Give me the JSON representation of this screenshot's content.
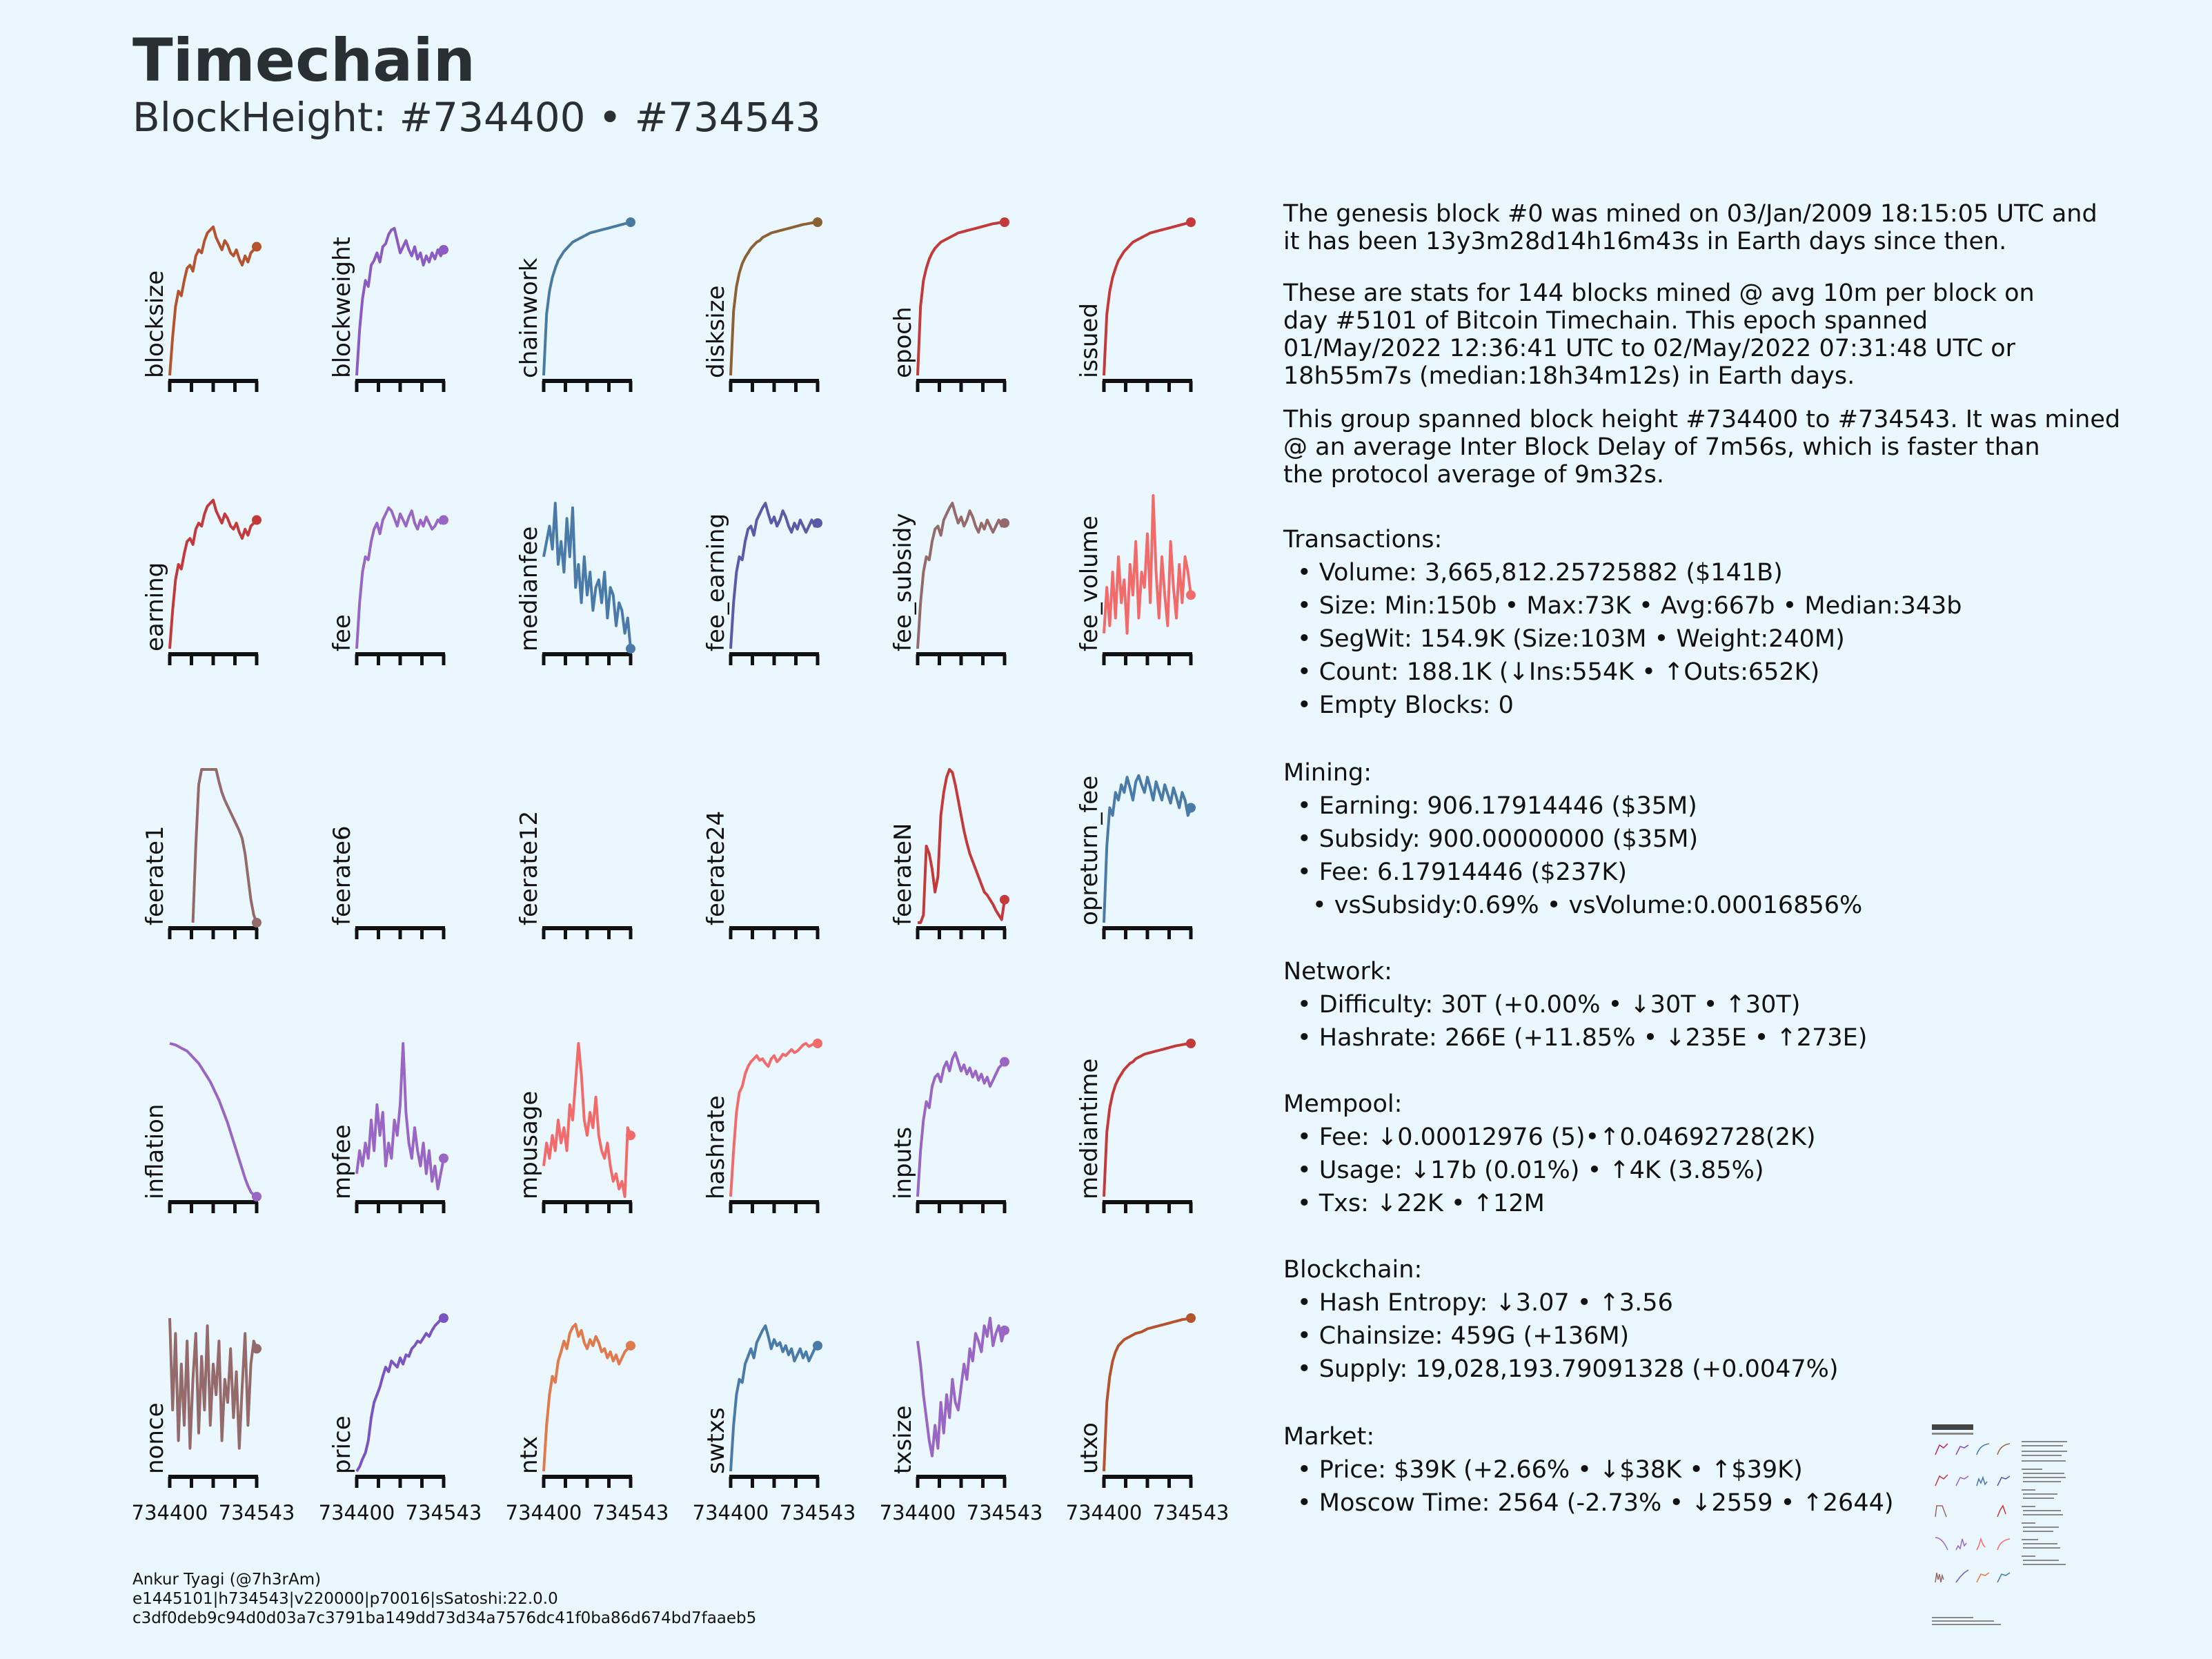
{
  "header": {
    "title": "Timechain",
    "subtitle": "BlockHeight: #734400 • #734543"
  },
  "intro": [
    "The genesis block #0 was mined on 03/Jan/2009 18:15:05 UTC and\nit has been 13y3m28d14h16m43s in Earth days since then.",
    "These are stats for 144 blocks mined @ avg 10m per block on\nday #5101 of Bitcoin Timechain. This epoch spanned\n01/May/2022 12:36:41 UTC to 02/May/2022 07:31:48 UTC or\n18h55m7s (median:18h34m12s) in Earth days.",
    "This group spanned block height #734400 to #734543. It was mined\n@ an average Inter Block Delay of 7m56s, which is faster than\nthe protocol average of 9m32s."
  ],
  "sections": [
    {
      "title": "Transactions:",
      "items": [
        "• Volume: 3,665,812.25725882 ($141B)",
        "• Size: Min:150b • Max:73K • Avg:667b • Median:343b",
        "• SegWit: 154.9K (Size:103M • Weight:240M)",
        "• Count: 188.1K (↓Ins:554K • ↑Outs:652K)",
        "• Empty Blocks: 0"
      ]
    },
    {
      "title": "Mining:",
      "items": [
        "• Earning: 906.17914446 ($35M)",
        "• Subsidy: 900.00000000 ($35M)",
        "• Fee: 6.17914446 ($237K)",
        "• vsSubsidy:0.69% • vsVolume:0.00016856%"
      ]
    },
    {
      "title": "Network:",
      "items": [
        "• Difficulty: 30T (+0.00% • ↓30T • ↑30T)",
        "• Hashrate: 266E (+11.85% • ↓235E • ↑273E)"
      ]
    },
    {
      "title": "Mempool:",
      "items": [
        "• Fee: ↓0.00012976 (5)•↑0.04692728(2K)",
        "• Usage: ↓17b (0.01%) • ↑4K (3.85%)",
        "• Txs: ↓22K • ↑12M"
      ]
    },
    {
      "title": "Blockchain:",
      "items": [
        "• Hash Entropy: ↓3.07 • ↑3.56",
        "• Chainsize: 459G (+136M)",
        "• Supply: 19,028,193.79091328 (+0.0047%)"
      ]
    },
    {
      "title": "Market:",
      "items": [
        "• Price: $39K (+2.66% • ↓$38K • ↑$39K)",
        "• Moscow Time: 2564 (-2.73% • ↓2559 • ↑2644)"
      ]
    }
  ],
  "footer": [
    "Ankur Tyagi (@7h3rAm)",
    "e1445101|h734543|v220000|p70016|sSatoshi:22.0.0",
    "c3df0deb9c94d0d03a7c3791ba149dd73d34a7576dc41f0ba86d674bd7faaeb5"
  ],
  "chart_data": {
    "type": "line",
    "note_x": "block height",
    "x_range": [
      734400,
      734543
    ],
    "tick_labels": [
      "734400",
      "734543"
    ],
    "series": [
      {
        "name": "blocksize",
        "color": "#b5532f",
        "values": [
          0,
          0.25,
          0.45,
          0.55,
          0.52,
          0.62,
          0.7,
          0.72,
          0.68,
          0.78,
          0.82,
          0.8,
          0.88,
          0.93,
          0.95,
          0.97,
          0.9,
          0.86,
          0.82,
          0.88,
          0.85,
          0.8,
          0.78,
          0.82,
          0.76,
          0.72,
          0.78,
          0.74,
          0.8,
          0.82,
          0.84
        ]
      },
      {
        "name": "blockweight",
        "color": "#8b5bc2",
        "values": [
          0,
          0.3,
          0.5,
          0.62,
          0.58,
          0.72,
          0.75,
          0.8,
          0.74,
          0.84,
          0.86,
          0.92,
          0.95,
          0.96,
          0.88,
          0.8,
          0.84,
          0.88,
          0.82,
          0.78,
          0.84,
          0.76,
          0.8,
          0.72,
          0.78,
          0.74,
          0.8,
          0.76,
          0.82,
          0.78,
          0.82
        ]
      },
      {
        "name": "chainwork",
        "color": "#4a7aa0",
        "values": [
          0,
          0.4,
          0.55,
          0.64,
          0.7,
          0.75,
          0.78,
          0.81,
          0.83,
          0.85,
          0.87,
          0.88,
          0.89,
          0.9,
          0.91,
          0.92,
          0.93,
          0.935,
          0.94,
          0.945,
          0.95,
          0.955,
          0.96,
          0.965,
          0.97,
          0.975,
          0.98,
          0.985,
          0.99,
          0.995,
          1
        ]
      },
      {
        "name": "disksize",
        "color": "#8a6233",
        "values": [
          0,
          0.42,
          0.58,
          0.67,
          0.73,
          0.77,
          0.8,
          0.83,
          0.85,
          0.87,
          0.88,
          0.9,
          0.91,
          0.92,
          0.93,
          0.935,
          0.94,
          0.945,
          0.95,
          0.955,
          0.96,
          0.965,
          0.97,
          0.975,
          0.98,
          0.985,
          0.988,
          0.992,
          0.995,
          0.998,
          1
        ]
      },
      {
        "name": "epoch",
        "color": "#c23a3a",
        "values": [
          0,
          0.45,
          0.62,
          0.7,
          0.76,
          0.8,
          0.83,
          0.85,
          0.87,
          0.88,
          0.89,
          0.9,
          0.91,
          0.92,
          0.93,
          0.935,
          0.94,
          0.945,
          0.95,
          0.955,
          0.96,
          0.965,
          0.97,
          0.975,
          0.98,
          0.985,
          0.99,
          0.993,
          0.996,
          0.998,
          1
        ]
      },
      {
        "name": "issued",
        "color": "#c23a3a",
        "values": [
          0,
          0.4,
          0.55,
          0.64,
          0.7,
          0.75,
          0.78,
          0.81,
          0.83,
          0.85,
          0.87,
          0.88,
          0.89,
          0.9,
          0.91,
          0.92,
          0.93,
          0.935,
          0.94,
          0.945,
          0.95,
          0.955,
          0.96,
          0.965,
          0.97,
          0.975,
          0.98,
          0.985,
          0.99,
          0.995,
          1
        ]
      },
      {
        "name": "earning",
        "color": "#c23a3a",
        "values": [
          0,
          0.25,
          0.45,
          0.55,
          0.52,
          0.62,
          0.7,
          0.72,
          0.68,
          0.78,
          0.82,
          0.8,
          0.88,
          0.93,
          0.95,
          0.97,
          0.9,
          0.86,
          0.82,
          0.88,
          0.85,
          0.8,
          0.78,
          0.82,
          0.76,
          0.72,
          0.78,
          0.74,
          0.8,
          0.82,
          0.84
        ]
      },
      {
        "name": "fee",
        "color": "#9a66c4",
        "values": [
          0,
          0.3,
          0.5,
          0.6,
          0.58,
          0.7,
          0.78,
          0.82,
          0.75,
          0.84,
          0.88,
          0.92,
          0.9,
          0.85,
          0.8,
          0.88,
          0.84,
          0.8,
          0.86,
          0.9,
          0.82,
          0.78,
          0.84,
          0.8,
          0.86,
          0.82,
          0.78,
          0.8,
          0.84,
          0.82,
          0.84
        ]
      },
      {
        "name": "medianfee",
        "color": "#4a7aa8",
        "values": [
          0.6,
          0.7,
          0.8,
          0.65,
          0.95,
          0.55,
          0.7,
          0.5,
          0.85,
          0.6,
          0.92,
          0.4,
          0.55,
          0.3,
          0.6,
          0.35,
          0.5,
          0.25,
          0.4,
          0.45,
          0.3,
          0.5,
          0.2,
          0.4,
          0.35,
          0.15,
          0.3,
          0.25,
          0.1,
          0.2,
          0
        ]
      },
      {
        "name": "fee_earning",
        "color": "#5a5aa8",
        "values": [
          0,
          0.3,
          0.5,
          0.6,
          0.58,
          0.7,
          0.78,
          0.8,
          0.74,
          0.84,
          0.88,
          0.92,
          0.95,
          0.88,
          0.82,
          0.86,
          0.8,
          0.84,
          0.9,
          0.86,
          0.8,
          0.76,
          0.82,
          0.78,
          0.84,
          0.8,
          0.76,
          0.8,
          0.84,
          0.8,
          0.82
        ]
      },
      {
        "name": "fee_subsidy",
        "color": "#946a6a",
        "values": [
          0,
          0.3,
          0.5,
          0.6,
          0.58,
          0.7,
          0.78,
          0.8,
          0.74,
          0.84,
          0.88,
          0.92,
          0.95,
          0.88,
          0.82,
          0.86,
          0.8,
          0.84,
          0.9,
          0.86,
          0.8,
          0.76,
          0.82,
          0.78,
          0.84,
          0.8,
          0.76,
          0.8,
          0.84,
          0.8,
          0.82
        ]
      },
      {
        "name": "fee_volume",
        "color": "#f26b6b",
        "values": [
          0.1,
          0.4,
          0.15,
          0.5,
          0.2,
          0.6,
          0.3,
          0.45,
          0.1,
          0.55,
          0.35,
          0.7,
          0.2,
          0.5,
          0.4,
          0.75,
          0.3,
          1,
          0.5,
          0.2,
          0.6,
          0.35,
          0.15,
          0.7,
          0.4,
          0.2,
          0.55,
          0.3,
          0.6,
          0.5,
          0.35
        ]
      },
      {
        "name": "feerate1",
        "color": "#946a6a",
        "values": [
          null,
          null,
          null,
          null,
          null,
          null,
          null,
          null,
          0,
          0.5,
          0.9,
          1,
          1,
          1,
          1,
          1,
          1,
          0.92,
          0.85,
          0.8,
          0.76,
          0.72,
          0.68,
          0.64,
          0.6,
          0.55,
          0.45,
          0.3,
          0.15,
          0.05,
          0
        ]
      },
      {
        "name": "feerate6",
        "color": "#9a66c4",
        "values": []
      },
      {
        "name": "feerate12",
        "color": "#4a7aa8",
        "values": []
      },
      {
        "name": "feerate24",
        "color": "#5a5aa8",
        "values": []
      },
      {
        "name": "feerateN",
        "color": "#c23a3a",
        "values": [
          0,
          0,
          0.05,
          0.5,
          0.45,
          0.35,
          0.2,
          0.3,
          0.7,
          0.85,
          0.95,
          1,
          0.98,
          0.9,
          0.8,
          0.7,
          0.6,
          0.52,
          0.45,
          0.4,
          0.35,
          0.3,
          0.25,
          0.2,
          0.18,
          0.15,
          0.12,
          0.08,
          0.05,
          0.02,
          0.15
        ]
      },
      {
        "name": "opreturn_fee",
        "color": "#4a7aa8",
        "values": [
          0,
          0.5,
          0.75,
          0.7,
          0.85,
          0.8,
          0.9,
          0.85,
          0.95,
          0.88,
          0.8,
          0.92,
          0.96,
          0.9,
          0.85,
          0.95,
          0.88,
          0.8,
          0.92,
          0.86,
          0.8,
          0.9,
          0.84,
          0.78,
          0.88,
          0.82,
          0.75,
          0.85,
          0.8,
          0.7,
          0.75
        ]
      },
      {
        "name": "inflation",
        "color": "#9a66c4",
        "values": [
          1,
          0.995,
          0.99,
          0.98,
          0.97,
          0.96,
          0.95,
          0.93,
          0.91,
          0.89,
          0.87,
          0.84,
          0.81,
          0.78,
          0.75,
          0.71,
          0.67,
          0.63,
          0.58,
          0.53,
          0.48,
          0.42,
          0.36,
          0.3,
          0.24,
          0.18,
          0.12,
          0.07,
          0.03,
          0.01,
          0
        ]
      },
      {
        "name": "mpfee",
        "color": "#9a66c4",
        "values": [
          0.15,
          0.3,
          0.2,
          0.35,
          0.25,
          0.5,
          0.3,
          0.6,
          0.4,
          0.55,
          0.2,
          0.35,
          0.25,
          0.5,
          0.4,
          0.6,
          1,
          0.55,
          0.35,
          0.25,
          0.45,
          0.3,
          0.2,
          0.35,
          0.15,
          0.3,
          0.1,
          0.2,
          0.05,
          0.15,
          0.25
        ]
      },
      {
        "name": "mpusage",
        "color": "#f26b6b",
        "values": [
          0.2,
          0.35,
          0.25,
          0.4,
          0.3,
          0.5,
          0.35,
          0.45,
          0.3,
          0.6,
          0.5,
          0.75,
          1,
          0.8,
          0.5,
          0.4,
          0.55,
          0.45,
          0.65,
          0.4,
          0.3,
          0.25,
          0.35,
          0.2,
          0.1,
          0.15,
          0.05,
          0.1,
          0,
          0.45,
          0.4
        ]
      },
      {
        "name": "hashrate",
        "color": "#f26b6b",
        "values": [
          0,
          0.3,
          0.55,
          0.68,
          0.72,
          0.8,
          0.85,
          0.88,
          0.9,
          0.92,
          0.89,
          0.9,
          0.87,
          0.85,
          0.9,
          0.92,
          0.88,
          0.9,
          0.93,
          0.92,
          0.94,
          0.96,
          0.94,
          0.95,
          0.97,
          0.99,
          1,
          0.98,
          0.99,
          1,
          1
        ]
      },
      {
        "name": "inputs",
        "color": "#9a66c4",
        "values": [
          0,
          0.3,
          0.5,
          0.62,
          0.58,
          0.72,
          0.78,
          0.8,
          0.75,
          0.84,
          0.88,
          0.82,
          0.9,
          0.94,
          0.88,
          0.82,
          0.86,
          0.8,
          0.84,
          0.78,
          0.82,
          0.76,
          0.8,
          0.74,
          0.78,
          0.72,
          0.76,
          0.8,
          0.84,
          0.86,
          0.88
        ]
      },
      {
        "name": "mediantime",
        "color": "#c23a3a",
        "values": [
          0,
          0.42,
          0.58,
          0.67,
          0.73,
          0.77,
          0.8,
          0.83,
          0.85,
          0.87,
          0.88,
          0.9,
          0.91,
          0.92,
          0.93,
          0.935,
          0.94,
          0.945,
          0.95,
          0.955,
          0.96,
          0.965,
          0.97,
          0.975,
          0.98,
          0.985,
          0.988,
          0.992,
          0.995,
          0.998,
          1
        ]
      },
      {
        "name": "nonce",
        "color": "#946a6a",
        "values": [
          1,
          0.4,
          0.9,
          0.2,
          0.7,
          0.3,
          0.85,
          0.15,
          0.6,
          0.9,
          0.25,
          0.75,
          0.4,
          0.95,
          0.3,
          0.7,
          0.5,
          0.85,
          0.2,
          0.6,
          0.45,
          0.8,
          0.35,
          0.65,
          0.15,
          0.55,
          0.9,
          0.3,
          0.7,
          0.85,
          0.8
        ]
      },
      {
        "name": "price",
        "color": "#7a54c0",
        "values": [
          0,
          0.03,
          0.08,
          0.12,
          0.2,
          0.35,
          0.45,
          0.5,
          0.55,
          0.62,
          0.68,
          0.65,
          0.72,
          0.7,
          0.68,
          0.74,
          0.7,
          0.76,
          0.75,
          0.8,
          0.82,
          0.85,
          0.84,
          0.87,
          0.9,
          0.88,
          0.92,
          0.95,
          0.97,
          0.99,
          1
        ]
      },
      {
        "name": "ntx",
        "color": "#e07a4a",
        "values": [
          0,
          0.3,
          0.5,
          0.62,
          0.58,
          0.72,
          0.78,
          0.85,
          0.8,
          0.9,
          0.94,
          0.96,
          0.88,
          0.92,
          0.84,
          0.8,
          0.86,
          0.82,
          0.88,
          0.84,
          0.78,
          0.8,
          0.74,
          0.78,
          0.72,
          0.76,
          0.7,
          0.74,
          0.78,
          0.8,
          0.82
        ]
      },
      {
        "name": "swtxs",
        "color": "#4a7aa8",
        "values": [
          0,
          0.3,
          0.5,
          0.6,
          0.58,
          0.7,
          0.75,
          0.8,
          0.74,
          0.84,
          0.88,
          0.92,
          0.95,
          0.88,
          0.8,
          0.86,
          0.82,
          0.84,
          0.78,
          0.82,
          0.76,
          0.8,
          0.72,
          0.76,
          0.8,
          0.74,
          0.78,
          0.72,
          0.76,
          0.8,
          0.82
        ]
      },
      {
        "name": "txsize",
        "color": "#9a66c4",
        "values": [
          0.85,
          0.7,
          0.5,
          0.35,
          0.2,
          0.1,
          0.3,
          0.15,
          0.45,
          0.25,
          0.5,
          0.35,
          0.6,
          0.45,
          0.4,
          0.55,
          0.7,
          0.6,
          0.8,
          0.72,
          0.9,
          0.85,
          0.78,
          0.95,
          0.88,
          1,
          0.82,
          0.9,
          0.95,
          0.85,
          0.92
        ]
      },
      {
        "name": "utxo",
        "color": "#b5532f",
        "values": [
          0,
          0.45,
          0.62,
          0.72,
          0.78,
          0.82,
          0.84,
          0.86,
          0.87,
          0.88,
          0.89,
          0.9,
          0.905,
          0.91,
          0.92,
          0.93,
          0.935,
          0.94,
          0.945,
          0.95,
          0.955,
          0.96,
          0.965,
          0.97,
          0.975,
          0.98,
          0.985,
          0.99,
          0.993,
          0.996,
          1
        ]
      }
    ]
  }
}
